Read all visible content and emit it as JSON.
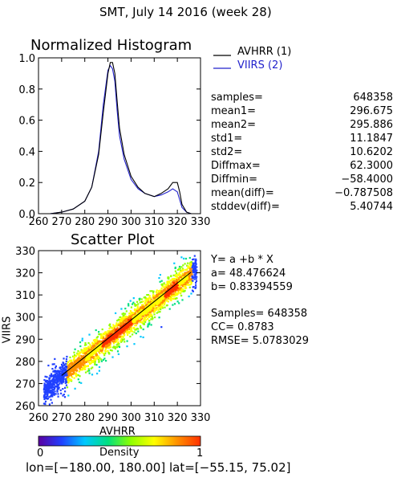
{
  "page_title": "SMT,  July 14 2016 (week 28)",
  "histogram": {
    "title": "Normalized Histogram",
    "legend": [
      {
        "label": "AVHRR (1)",
        "color": "#000000"
      },
      {
        "label": "VIIRS (2)",
        "color": "#2222cc"
      }
    ]
  },
  "stats": [
    {
      "label": "samples=",
      "value": "648358"
    },
    {
      "label": "mean1=",
      "value": "296.675"
    },
    {
      "label": "mean2=",
      "value": "295.886"
    },
    {
      "label": "std1=",
      "value": "11.1847"
    },
    {
      "label": "std2=",
      "value": "10.6202"
    },
    {
      "label": "Diffmax=",
      "value": "62.3000"
    },
    {
      "label": "Diffmin=",
      "value": "−58.4000"
    },
    {
      "label": "mean(diff)=",
      "value": "−0.787508"
    },
    {
      "label": "stddev(diff)=",
      "value": "5.40744"
    }
  ],
  "regression": {
    "eq": "Y= a +b * X",
    "a": "a= 48.476624",
    "b": "b= 0.83394559",
    "samples": "Samples= 648358",
    "cc": "CC=  0.8783",
    "rmse": "RMSE= 5.0783029"
  },
  "scatter": {
    "title": "Scatter Plot",
    "xlabel": "AVHRR",
    "ylabel": "VIIRS"
  },
  "colorbar": {
    "label": "Density",
    "min_label": "0",
    "max_label": "1",
    "colors": [
      "#5a00a0",
      "#2040ff",
      "#00c8ff",
      "#00e080",
      "#90ff00",
      "#ffff00",
      "#ff9000",
      "#ff3000"
    ]
  },
  "footer": "lon=[−180.00, 180.00] lat=[−55.15, 75.02]",
  "chart_data": [
    {
      "type": "line",
      "xlim": [
        260,
        330
      ],
      "ylim": [
        0,
        1.0
      ],
      "x_ticks": [
        "260",
        "270",
        "280",
        "290",
        "300",
        "310",
        "320",
        "330"
      ],
      "y_ticks": [
        "0.0",
        "0.2",
        "0.4",
        "0.6",
        "0.8",
        "1.0"
      ],
      "x": [
        260,
        265,
        270,
        275,
        280,
        283,
        286,
        288,
        290,
        291,
        292,
        293,
        294,
        295,
        297,
        300,
        303,
        306,
        310,
        313,
        316,
        318,
        320,
        321,
        322,
        324,
        326,
        328,
        330
      ],
      "series": [
        {
          "name": "AVHRR (1)",
          "color": "#000000",
          "values": [
            0.0,
            0.0,
            0.01,
            0.03,
            0.08,
            0.17,
            0.38,
            0.65,
            0.9,
            0.97,
            0.97,
            0.9,
            0.72,
            0.55,
            0.38,
            0.24,
            0.17,
            0.13,
            0.11,
            0.13,
            0.16,
            0.2,
            0.2,
            0.14,
            0.06,
            0.01,
            0.0,
            0.0,
            0.0
          ]
        },
        {
          "name": "VIIRS (2)",
          "color": "#2222cc",
          "values": [
            0.0,
            0.0,
            0.01,
            0.03,
            0.08,
            0.17,
            0.4,
            0.7,
            0.92,
            0.95,
            0.93,
            0.85,
            0.66,
            0.5,
            0.35,
            0.22,
            0.16,
            0.13,
            0.11,
            0.12,
            0.14,
            0.16,
            0.14,
            0.09,
            0.04,
            0.01,
            0.0,
            0.0,
            0.0
          ]
        }
      ]
    },
    {
      "type": "scatter",
      "title": "Scatter Plot",
      "xlabel": "AVHRR",
      "ylabel": "VIIRS",
      "xlim": [
        260,
        330
      ],
      "ylim": [
        260,
        330
      ],
      "x_ticks": [
        "260",
        "270",
        "280",
        "290",
        "300",
        "310",
        "320",
        "330"
      ],
      "y_ticks": [
        "260",
        "270",
        "280",
        "290",
        "300",
        "310",
        "320",
        "330"
      ],
      "fit": {
        "a": 48.476624,
        "b": 0.83394559
      }
    }
  ]
}
